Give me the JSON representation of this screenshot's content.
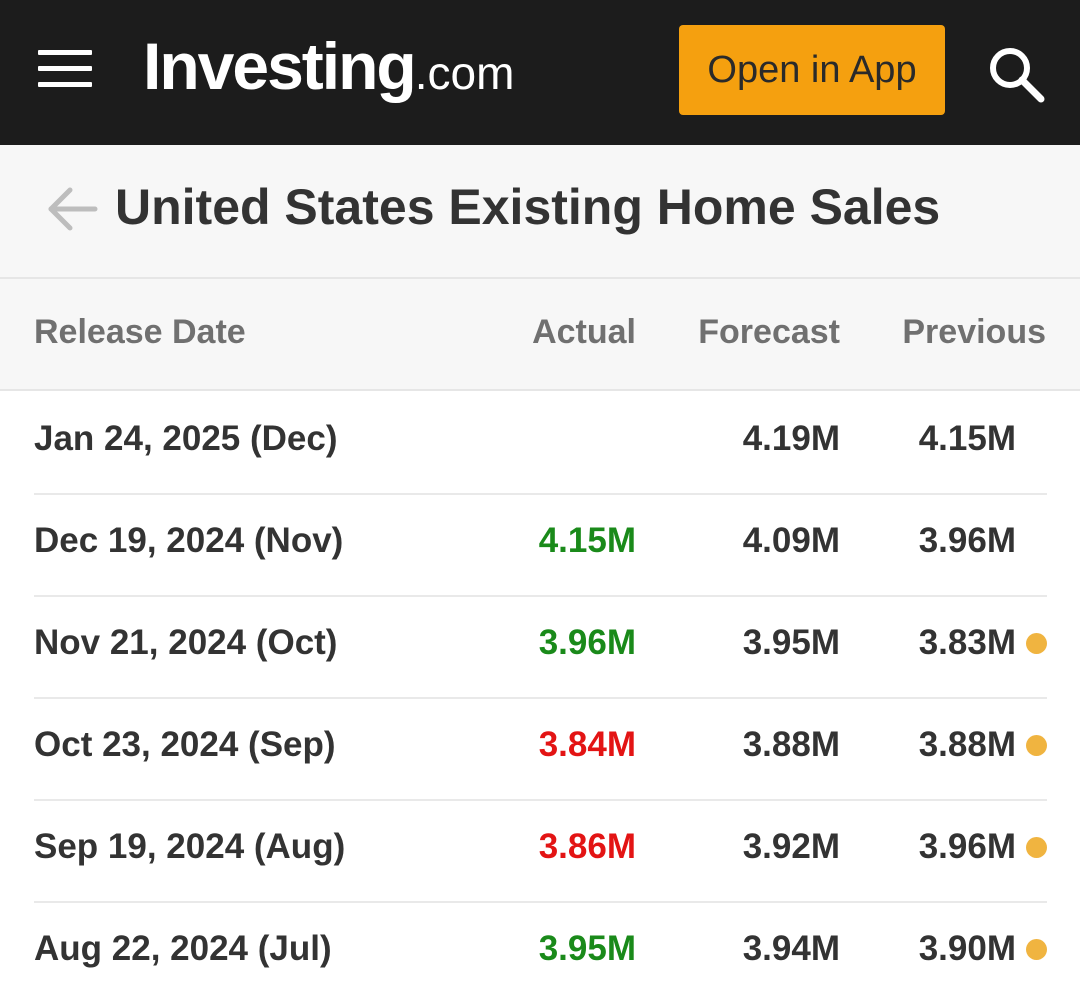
{
  "header": {
    "logo_main": "Investing",
    "logo_suffix": ".com",
    "open_app_label": "Open in App",
    "accent_color": "#f5a00f",
    "background_color": "#1c1c1c",
    "icons": [
      "hamburger-menu-icon",
      "search-icon"
    ]
  },
  "page": {
    "title": "United States Existing Home Sales",
    "back_icon": "back-arrow-icon"
  },
  "table": {
    "columns": [
      "Release Date",
      "Actual",
      "Forecast",
      "Previous"
    ],
    "rows": [
      {
        "date": "Jan 24, 2025 (Dec)",
        "actual": "",
        "actual_status": "none",
        "forecast": "4.19M",
        "previous": "4.15M",
        "revised": false
      },
      {
        "date": "Dec 19, 2024 (Nov)",
        "actual": "4.15M",
        "actual_status": "better",
        "forecast": "4.09M",
        "previous": "3.96M",
        "revised": false
      },
      {
        "date": "Nov 21, 2024 (Oct)",
        "actual": "3.96M",
        "actual_status": "better",
        "forecast": "3.95M",
        "previous": "3.83M",
        "revised": true
      },
      {
        "date": "Oct 23, 2024 (Sep)",
        "actual": "3.84M",
        "actual_status": "worse",
        "forecast": "3.88M",
        "previous": "3.88M",
        "revised": true
      },
      {
        "date": "Sep 19, 2024 (Aug)",
        "actual": "3.86M",
        "actual_status": "worse",
        "forecast": "3.92M",
        "previous": "3.96M",
        "revised": true
      },
      {
        "date": "Aug 22, 2024 (Jul)",
        "actual": "3.95M",
        "actual_status": "better",
        "forecast": "3.94M",
        "previous": "3.90M",
        "revised": true
      }
    ]
  },
  "colors": {
    "better": "#1a8a1a",
    "worse": "#e31414",
    "revised_dot": "#f0b440"
  }
}
